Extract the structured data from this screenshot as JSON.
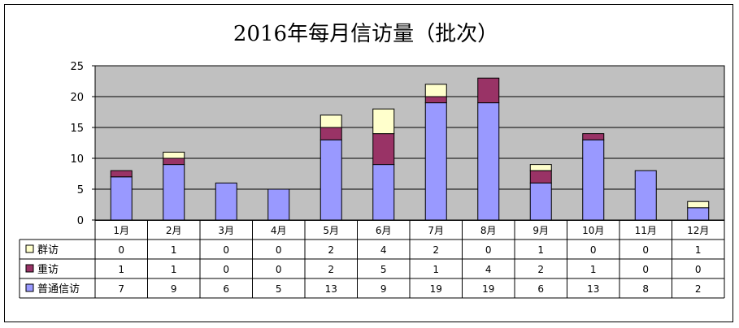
{
  "chart_data": {
    "type": "bar",
    "stacked": true,
    "title": "2016年每月信访量（批次）",
    "categories": [
      "1月",
      "2月",
      "3月",
      "4月",
      "5月",
      "6月",
      "7月",
      "8月",
      "9月",
      "10月",
      "11月",
      "12月"
    ],
    "series": [
      {
        "name": "普通信访",
        "color": "#9999ff",
        "values": [
          7,
          9,
          6,
          5,
          13,
          9,
          19,
          19,
          6,
          13,
          8,
          2
        ]
      },
      {
        "name": "重访",
        "color": "#993366",
        "values": [
          1,
          1,
          0,
          0,
          2,
          5,
          1,
          4,
          2,
          1,
          0,
          0
        ]
      },
      {
        "name": "群访",
        "color": "#ffffcc",
        "values": [
          0,
          1,
          0,
          0,
          2,
          4,
          2,
          0,
          1,
          0,
          0,
          1
        ]
      }
    ],
    "table_order": [
      "群访",
      "重访",
      "普通信访"
    ],
    "ylim": [
      0,
      25
    ],
    "yticks": [
      0,
      5,
      10,
      15,
      20,
      25
    ],
    "grid": true,
    "plot_background": "#c0c0c0",
    "legend": "data-table"
  }
}
